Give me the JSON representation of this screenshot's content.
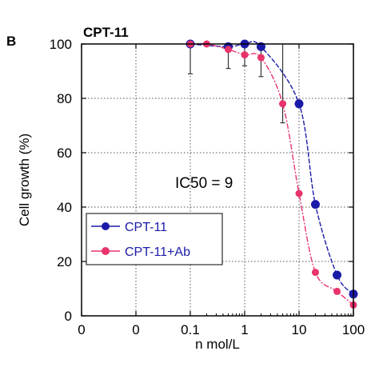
{
  "chart_data": {
    "type": "line",
    "panel_label": "B",
    "title": "CPT-11",
    "xlabel": "n mol/L",
    "ylabel": "Cell growth (%)",
    "x_scale": "log",
    "x_tick_labels": [
      "0",
      "0",
      "0.1",
      "1",
      "10",
      "100"
    ],
    "y_ticks": [
      0,
      20,
      40,
      60,
      80,
      100
    ],
    "ylim": [
      0,
      100
    ],
    "grid": true,
    "legend_position": "bottom-left",
    "annotation": "IC50 = 9",
    "series": [
      {
        "name": "CPT-11",
        "color": "#1a1aa8",
        "points": [
          {
            "x": 0.1,
            "y": 100
          },
          {
            "x": 0.5,
            "y": 99
          },
          {
            "x": 1,
            "y": 100
          },
          {
            "x": 2,
            "y": 99
          },
          {
            "x": 10,
            "y": 78
          },
          {
            "x": 20,
            "y": 41
          },
          {
            "x": 50,
            "y": 15
          },
          {
            "x": 100,
            "y": 8
          }
        ]
      },
      {
        "name": "CPT-11+Ab",
        "color": "#e8336b",
        "points": [
          {
            "x": 0.1,
            "y": 100
          },
          {
            "x": 0.2,
            "y": 100
          },
          {
            "x": 0.5,
            "y": 98
          },
          {
            "x": 1,
            "y": 96
          },
          {
            "x": 2,
            "y": 95
          },
          {
            "x": 5,
            "y": 78
          },
          {
            "x": 10,
            "y": 45
          },
          {
            "x": 20,
            "y": 16
          },
          {
            "x": 50,
            "y": 9
          },
          {
            "x": 100,
            "y": 4
          }
        ]
      }
    ],
    "error_bars": [
      {
        "x": 0.1,
        "low": 89
      },
      {
        "x": 0.5,
        "low": 91
      },
      {
        "x": 1,
        "low": 92
      },
      {
        "x": 2,
        "low": 88
      },
      {
        "x": 5,
        "low": 71
      }
    ]
  }
}
